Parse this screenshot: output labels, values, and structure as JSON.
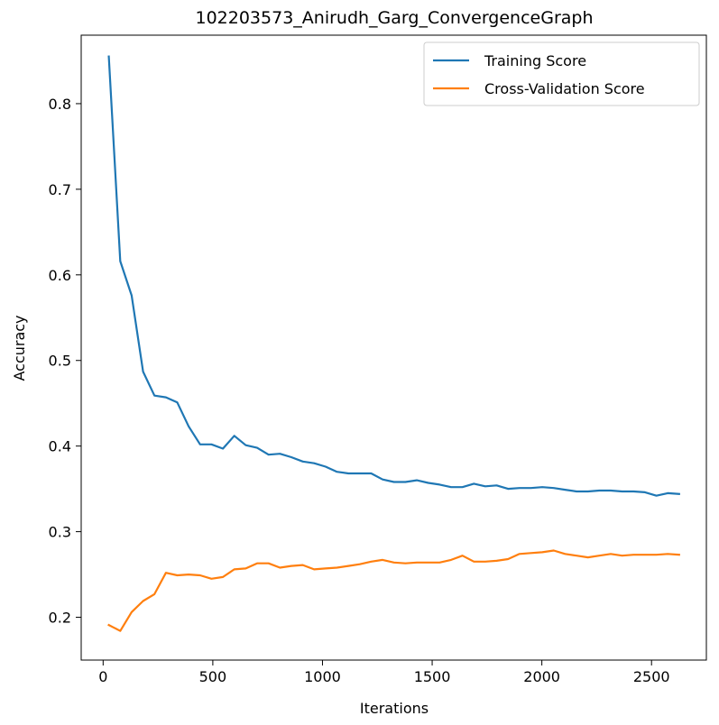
{
  "chart_data": {
    "type": "line",
    "title": "102203573_Anirudh_Garg_ConvergenceGraph",
    "xlabel": "Iterations",
    "ylabel": "Accuracy",
    "xlim": [
      -100,
      2750
    ],
    "ylim": [
      0.15,
      0.88
    ],
    "xticks": [
      0,
      500,
      1000,
      1500,
      2000,
      2500
    ],
    "yticks": [
      0.2,
      0.3,
      0.4,
      0.5,
      0.6,
      0.7,
      0.8
    ],
    "xtick_labels": [
      "0",
      "500",
      "1000",
      "1500",
      "2000",
      "2500"
    ],
    "ytick_labels": [
      "0.2",
      "0.3",
      "0.4",
      "0.5",
      "0.6",
      "0.7",
      "0.8"
    ],
    "grid": false,
    "legend_position": "top-right",
    "x": [
      26,
      78,
      130,
      182,
      234,
      286,
      338,
      390,
      442,
      494,
      546,
      598,
      650,
      702,
      754,
      806,
      858,
      910,
      962,
      1014,
      1066,
      1118,
      1170,
      1222,
      1274,
      1326,
      1378,
      1430,
      1482,
      1534,
      1586,
      1638,
      1690,
      1742,
      1794,
      1846,
      1898,
      1950,
      2002,
      2054,
      2106,
      2158,
      2210,
      2262,
      2314,
      2366,
      2418,
      2470,
      2522,
      2574,
      2626
    ],
    "series": [
      {
        "name": "Training Score",
        "color": "#1f77b4",
        "values": [
          0.855,
          0.616,
          0.576,
          0.487,
          0.459,
          0.457,
          0.451,
          0.423,
          0.402,
          0.402,
          0.397,
          0.412,
          0.401,
          0.398,
          0.39,
          0.391,
          0.387,
          0.382,
          0.38,
          0.376,
          0.37,
          0.368,
          0.368,
          0.368,
          0.361,
          0.358,
          0.358,
          0.36,
          0.357,
          0.355,
          0.352,
          0.352,
          0.356,
          0.353,
          0.354,
          0.35,
          0.351,
          0.351,
          0.352,
          0.351,
          0.349,
          0.347,
          0.347,
          0.348,
          0.348,
          0.347,
          0.347,
          0.346,
          0.342,
          0.345,
          0.344
        ]
      },
      {
        "name": "Cross-Validation Score",
        "color": "#ff7f0e",
        "values": [
          0.191,
          0.184,
          0.206,
          0.219,
          0.227,
          0.252,
          0.249,
          0.25,
          0.249,
          0.245,
          0.247,
          0.256,
          0.257,
          0.263,
          0.263,
          0.258,
          0.26,
          0.261,
          0.256,
          0.257,
          0.258,
          0.26,
          0.262,
          0.265,
          0.267,
          0.264,
          0.263,
          0.264,
          0.264,
          0.264,
          0.267,
          0.272,
          0.265,
          0.265,
          0.266,
          0.268,
          0.274,
          0.275,
          0.276,
          0.278,
          0.274,
          0.272,
          0.27,
          0.272,
          0.274,
          0.272,
          0.273,
          0.273,
          0.273,
          0.274,
          0.273
        ]
      }
    ]
  }
}
